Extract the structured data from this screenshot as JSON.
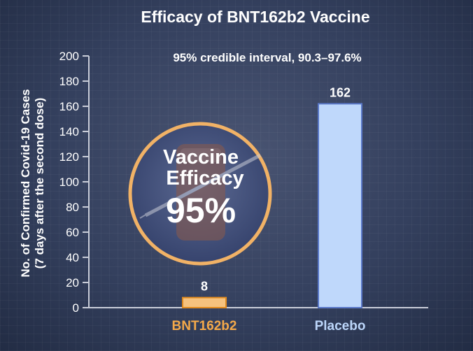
{
  "chart_data": {
    "type": "bar",
    "title": "Efficacy of BNT162b2 Vaccine",
    "subtitle": "95% credible interval, 90.3–97.6%",
    "ylabel_line1": "No. of Confirmed Covid-19 Cases",
    "ylabel_line2": "(7 days after the second dose)",
    "categories": [
      "BNT162b2",
      "Placebo"
    ],
    "values": [
      8,
      162
    ],
    "data_labels": [
      "8",
      "162"
    ],
    "ylim": [
      0,
      200
    ],
    "yticks": [
      "0",
      "20",
      "40",
      "60",
      "80",
      "100",
      "120",
      "140",
      "160",
      "180",
      "200"
    ],
    "grid": false,
    "colors": {
      "bars": [
        "#f6c27e",
        "#bfd8fb"
      ],
      "bar_strokes": [
        "#e08a1e",
        "#5a78c8"
      ],
      "category_labels": [
        "#f4a94a",
        "#bcd6fa"
      ],
      "axis": "#c8ccd8"
    }
  },
  "badge": {
    "line1": "Vaccine",
    "line2": "Efficacy",
    "line3": "95%",
    "ring_color": "#f1b266"
  }
}
